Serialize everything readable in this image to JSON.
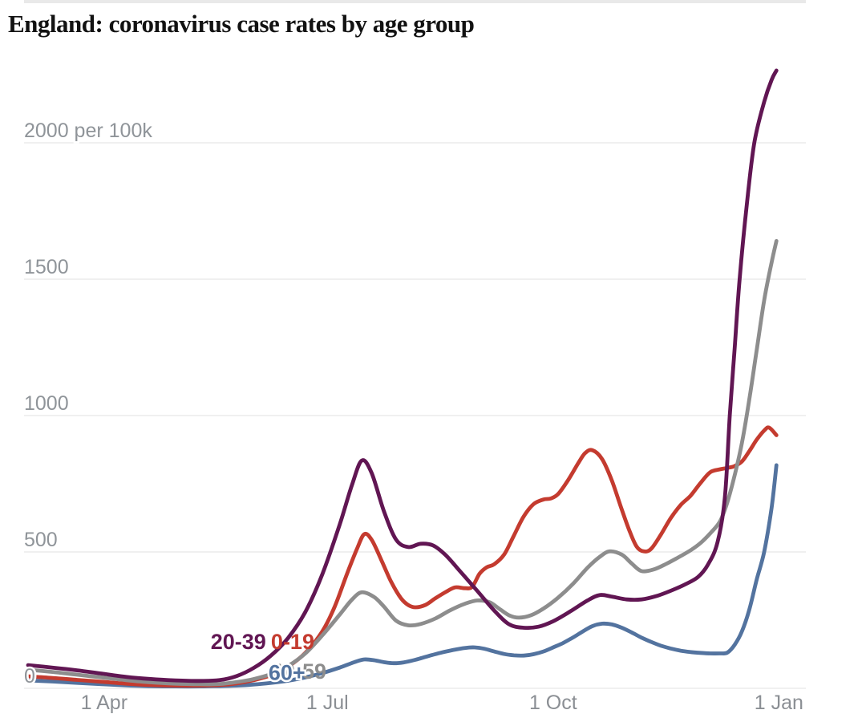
{
  "title": "England: coronavirus case rates by age group",
  "chart_data": {
    "type": "line",
    "title": "England: coronavirus case rates by age group",
    "unit": "cases per 100k people",
    "grid": true,
    "x_axis": {
      "start_label_implied": "1 Mar",
      "domain_days": [
        0,
        317
      ],
      "ticks": [
        {
          "day": 31,
          "label": "1 Apr"
        },
        {
          "day": 122,
          "label": "1 Jul"
        },
        {
          "day": 214,
          "label": "1 Oct"
        },
        {
          "day": 306,
          "label": "1 Jan"
        }
      ]
    },
    "y_axis": {
      "range": [
        0,
        2000
      ],
      "ticks": [
        {
          "value": 0,
          "label": "0"
        },
        {
          "value": 500,
          "label": "500"
        },
        {
          "value": 1000,
          "label": "1000"
        },
        {
          "value": 1500,
          "label": "1500"
        },
        {
          "value": 2000,
          "label": "2000 per 100k"
        }
      ]
    },
    "series": [
      {
        "name": "60+",
        "color": "#53739f",
        "points": [
          [
            0,
            29
          ],
          [
            10,
            25
          ],
          [
            20,
            20
          ],
          [
            30,
            15
          ],
          [
            40,
            11
          ],
          [
            50,
            8
          ],
          [
            60,
            7
          ],
          [
            70,
            7
          ],
          [
            78,
            8
          ],
          [
            85,
            10
          ],
          [
            92,
            14
          ],
          [
            99,
            20
          ],
          [
            106,
            28
          ],
          [
            113,
            40
          ],
          [
            120,
            56
          ],
          [
            127,
            76
          ],
          [
            133,
            96
          ],
          [
            137,
            106
          ],
          [
            141,
            103
          ],
          [
            145,
            96
          ],
          [
            149,
            92
          ],
          [
            153,
            95
          ],
          [
            158,
            105
          ],
          [
            163,
            118
          ],
          [
            168,
            130
          ],
          [
            173,
            140
          ],
          [
            178,
            148
          ],
          [
            182,
            150
          ],
          [
            186,
            145
          ],
          [
            190,
            135
          ],
          [
            194,
            126
          ],
          [
            198,
            121
          ],
          [
            202,
            120
          ],
          [
            206,
            125
          ],
          [
            210,
            135
          ],
          [
            214,
            150
          ],
          [
            218,
            166
          ],
          [
            222,
            186
          ],
          [
            226,
            208
          ],
          [
            230,
            228
          ],
          [
            234,
            237
          ],
          [
            238,
            234
          ],
          [
            242,
            222
          ],
          [
            246,
            205
          ],
          [
            250,
            186
          ],
          [
            254,
            170
          ],
          [
            258,
            156
          ],
          [
            262,
            146
          ],
          [
            266,
            138
          ],
          [
            270,
            133
          ],
          [
            274,
            130
          ],
          [
            278,
            128
          ],
          [
            282,
            128
          ],
          [
            285,
            131
          ],
          [
            288,
            160
          ],
          [
            291,
            210
          ],
          [
            294,
            290
          ],
          [
            297,
            400
          ],
          [
            300,
            500
          ],
          [
            303,
            660
          ],
          [
            305,
            818
          ]
        ]
      },
      {
        "name": "0-19",
        "color": "#c43b2f",
        "points": [
          [
            0,
            44
          ],
          [
            10,
            38
          ],
          [
            20,
            31
          ],
          [
            30,
            24
          ],
          [
            40,
            17
          ],
          [
            50,
            12
          ],
          [
            60,
            10
          ],
          [
            70,
            10
          ],
          [
            78,
            12
          ],
          [
            85,
            18
          ],
          [
            92,
            30
          ],
          [
            99,
            48
          ],
          [
            106,
            80
          ],
          [
            113,
            130
          ],
          [
            120,
            210
          ],
          [
            125,
            300
          ],
          [
            130,
            420
          ],
          [
            134,
            510
          ],
          [
            137,
            565
          ],
          [
            140,
            545
          ],
          [
            144,
            470
          ],
          [
            148,
            390
          ],
          [
            152,
            330
          ],
          [
            155,
            305
          ],
          [
            158,
            297
          ],
          [
            162,
            306
          ],
          [
            166,
            330
          ],
          [
            170,
            352
          ],
          [
            174,
            370
          ],
          [
            178,
            367
          ],
          [
            181,
            372
          ],
          [
            184,
            420
          ],
          [
            187,
            444
          ],
          [
            190,
            455
          ],
          [
            194,
            490
          ],
          [
            198,
            560
          ],
          [
            202,
            630
          ],
          [
            206,
            675
          ],
          [
            210,
            692
          ],
          [
            213,
            696
          ],
          [
            216,
            712
          ],
          [
            220,
            762
          ],
          [
            224,
            822
          ],
          [
            227,
            862
          ],
          [
            230,
            873
          ],
          [
            234,
            840
          ],
          [
            238,
            760
          ],
          [
            242,
            655
          ],
          [
            245,
            580
          ],
          [
            248,
            520
          ],
          [
            251,
            502
          ],
          [
            254,
            512
          ],
          [
            258,
            565
          ],
          [
            262,
            625
          ],
          [
            266,
            672
          ],
          [
            270,
            706
          ],
          [
            274,
            752
          ],
          [
            278,
            792
          ],
          [
            282,
            803
          ],
          [
            285,
            808
          ],
          [
            288,
            815
          ],
          [
            291,
            832
          ],
          [
            294,
            870
          ],
          [
            297,
            912
          ],
          [
            300,
            945
          ],
          [
            302,
            956
          ],
          [
            305,
            928
          ]
        ]
      },
      {
        "name": "40-59",
        "color": "#8d8d8d",
        "points": [
          [
            0,
            68
          ],
          [
            10,
            60
          ],
          [
            20,
            50
          ],
          [
            30,
            40
          ],
          [
            40,
            30
          ],
          [
            50,
            22
          ],
          [
            60,
            17
          ],
          [
            70,
            15
          ],
          [
            78,
            16
          ],
          [
            85,
            23
          ],
          [
            92,
            34
          ],
          [
            99,
            52
          ],
          [
            106,
            82
          ],
          [
            113,
            128
          ],
          [
            120,
            195
          ],
          [
            127,
            270
          ],
          [
            132,
            325
          ],
          [
            136,
            352
          ],
          [
            141,
            335
          ],
          [
            145,
            300
          ],
          [
            150,
            248
          ],
          [
            155,
            231
          ],
          [
            160,
            236
          ],
          [
            166,
            256
          ],
          [
            172,
            286
          ],
          [
            178,
            310
          ],
          [
            183,
            322
          ],
          [
            188,
            316
          ],
          [
            192,
            292
          ],
          [
            196,
            268
          ],
          [
            200,
            259
          ],
          [
            205,
            268
          ],
          [
            210,
            292
          ],
          [
            216,
            332
          ],
          [
            222,
            382
          ],
          [
            228,
            442
          ],
          [
            233,
            482
          ],
          [
            237,
            502
          ],
          [
            242,
            490
          ],
          [
            246,
            458
          ],
          [
            250,
            430
          ],
          [
            255,
            436
          ],
          [
            260,
            456
          ],
          [
            265,
            480
          ],
          [
            270,
            506
          ],
          [
            274,
            532
          ],
          [
            278,
            568
          ],
          [
            282,
            612
          ],
          [
            285,
            682
          ],
          [
            288,
            782
          ],
          [
            291,
            902
          ],
          [
            294,
            1062
          ],
          [
            297,
            1242
          ],
          [
            300,
            1422
          ],
          [
            303,
            1560
          ],
          [
            305,
            1640
          ]
        ]
      },
      {
        "name": "20-39",
        "color": "#611653",
        "points": [
          [
            0,
            85
          ],
          [
            10,
            76
          ],
          [
            20,
            66
          ],
          [
            30,
            54
          ],
          [
            40,
            42
          ],
          [
            50,
            34
          ],
          [
            60,
            29
          ],
          [
            70,
            27
          ],
          [
            78,
            30
          ],
          [
            85,
            45
          ],
          [
            92,
            75
          ],
          [
            99,
            120
          ],
          [
            106,
            185
          ],
          [
            113,
            280
          ],
          [
            120,
            420
          ],
          [
            127,
            600
          ],
          [
            132,
            745
          ],
          [
            136,
            835
          ],
          [
            140,
            790
          ],
          [
            145,
            650
          ],
          [
            150,
            545
          ],
          [
            155,
            518
          ],
          [
            160,
            530
          ],
          [
            165,
            524
          ],
          [
            170,
            490
          ],
          [
            176,
            430
          ],
          [
            183,
            358
          ],
          [
            190,
            285
          ],
          [
            196,
            235
          ],
          [
            202,
            222
          ],
          [
            208,
            226
          ],
          [
            214,
            246
          ],
          [
            221,
            282
          ],
          [
            228,
            322
          ],
          [
            233,
            342
          ],
          [
            238,
            336
          ],
          [
            244,
            326
          ],
          [
            250,
            326
          ],
          [
            256,
            338
          ],
          [
            262,
            358
          ],
          [
            268,
            382
          ],
          [
            273,
            408
          ],
          [
            277,
            452
          ],
          [
            281,
            535
          ],
          [
            284,
            700
          ],
          [
            286,
            1000
          ],
          [
            288,
            1250
          ],
          [
            290,
            1500
          ],
          [
            293,
            1780
          ],
          [
            296,
            2000
          ],
          [
            300,
            2150
          ],
          [
            303,
            2230
          ],
          [
            305,
            2265
          ]
        ]
      }
    ],
    "series_labels": [
      {
        "text": "20-39",
        "color": "#611653",
        "day": 97,
        "value": 170,
        "anchor": "end",
        "halo": false
      },
      {
        "text": "40-59",
        "color": "#8d8d8d",
        "day": 99,
        "value": 62,
        "anchor": "start",
        "halo": false
      },
      {
        "text": "60+",
        "color": "#53739f",
        "day": 98,
        "value": 57,
        "anchor": "start",
        "halo": true
      },
      {
        "text": "0-19",
        "color": "#c43b2f",
        "day": 99,
        "value": 170,
        "anchor": "start",
        "halo": false
      }
    ],
    "legend_position": "inline-labels",
    "gridline_color": "#e6e6e6"
  }
}
